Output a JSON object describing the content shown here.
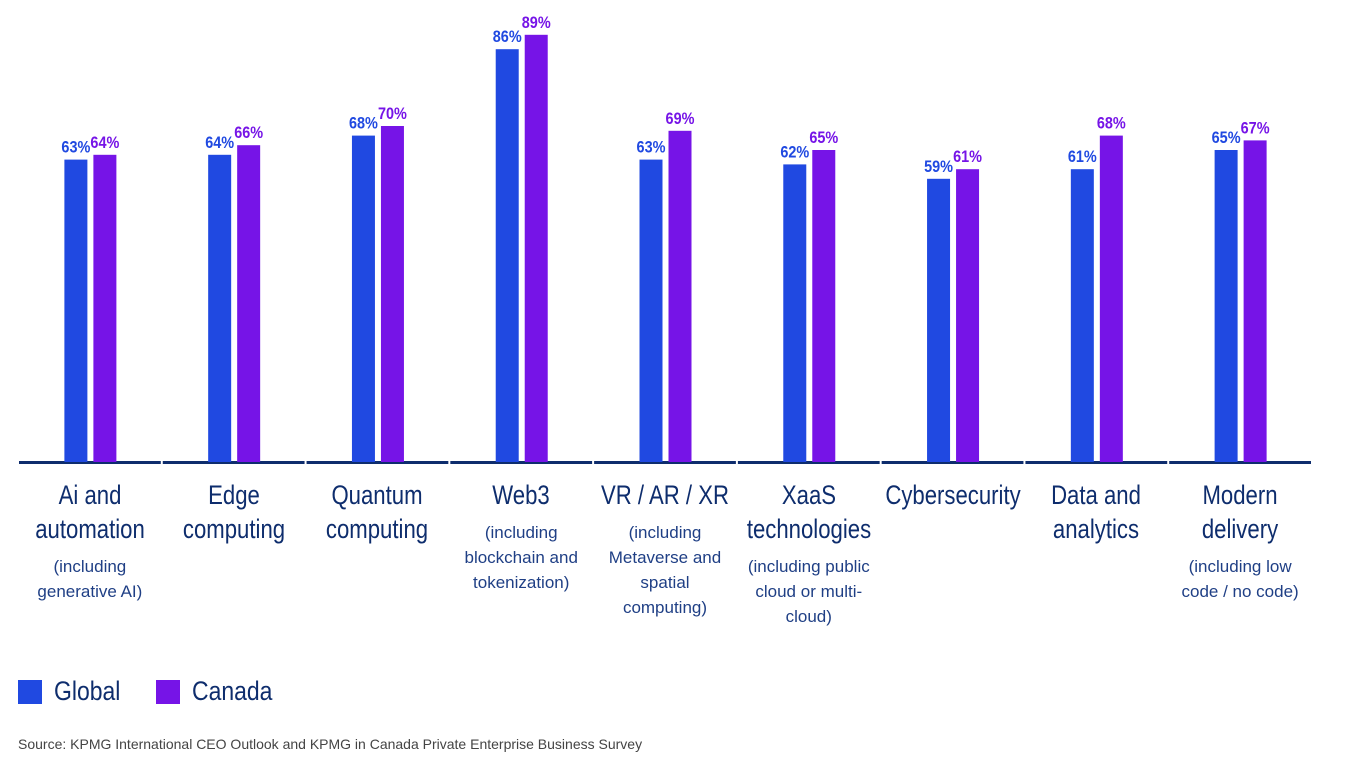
{
  "chart_data": {
    "type": "bar",
    "categories": [
      "Ai and automation",
      "Edge computing",
      "Quantum computing",
      "Web3",
      "VR / AR / XR",
      "XaaS technologies",
      "Cybersecurity",
      "Data and analytics",
      "Modern delivery"
    ],
    "subtitles": [
      "(including generative AI)",
      null,
      null,
      "(including blockchain and tokenization)",
      "(including Metaverse and spatial computing)",
      "(including public cloud or multi-cloud)",
      null,
      null,
      "(including low code / no code)"
    ],
    "series": [
      {
        "name": "Global",
        "color": "#2049e1",
        "values": [
          63,
          64,
          68,
          86,
          63,
          62,
          59,
          61,
          65
        ],
        "value_labels": [
          "63%",
          "64%",
          "68%",
          "86%",
          "63%",
          "62%",
          "59%",
          "61%",
          "65%"
        ]
      },
      {
        "name": "Canada",
        "color": "#7614e7",
        "values": [
          64,
          66,
          70,
          89,
          69,
          65,
          61,
          68,
          67
        ],
        "value_labels": [
          "64%",
          "66%",
          "70%",
          "89%",
          "69%",
          "65%",
          "61%",
          "68%",
          "67%"
        ]
      }
    ],
    "source": "Source: KPMG International CEO Outlook and KPMG in Canada Private Enterprise Business Survey"
  }
}
